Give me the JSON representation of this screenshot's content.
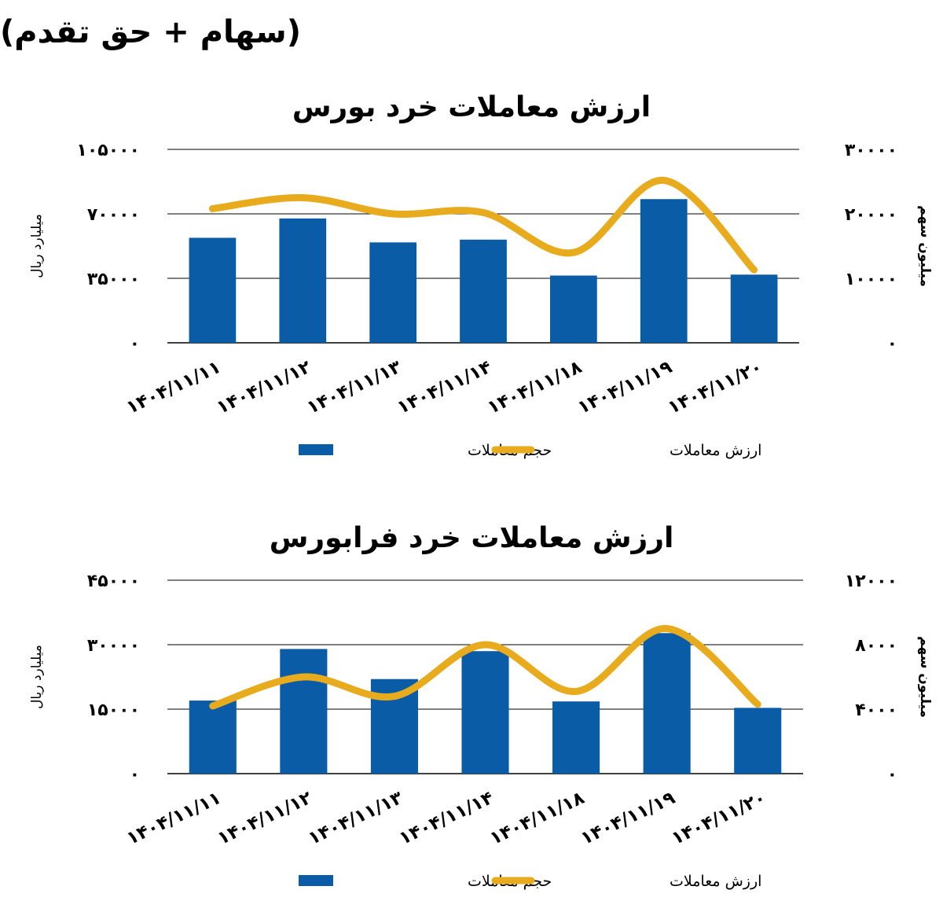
{
  "header": {
    "title": "(سهام + حق تقدم)"
  },
  "colors": {
    "bar": "#0b5ca7",
    "line": "#e8ab1e",
    "grid": "#000000"
  },
  "chart_data": [
    {
      "type": "bar",
      "title": "ارزش معاملات خرد بورس",
      "categories": [
        "1404/11/11",
        "1404/11/12",
        "1404/11/13",
        "1404/11/14",
        "1404/11/18",
        "1404/11/19",
        "1404/11/20"
      ],
      "category_labels": [
        "۱۴۰۴/۱۱/۱۱",
        "۱۴۰۴/۱۱/۱۲",
        "۱۴۰۴/۱۱/۱۳",
        "۱۴۰۴/۱۱/۱۴",
        "۱۴۰۴/۱۱/۱۸",
        "۱۴۰۴/۱۱/۱۹",
        "۱۴۰۴/۱۱/۲۰"
      ],
      "ylabel_left": "میلیارد ریال",
      "ylabel_right": "میلیون سهم",
      "ylim_left": [
        0,
        105000
      ],
      "ylim_right": [
        0,
        30000
      ],
      "left_ticks": [
        "۰",
        "۳۵۰۰۰",
        "۷۰۰۰۰",
        "۱۰۵۰۰۰"
      ],
      "right_ticks": [
        "۰",
        "۱۰۰۰۰",
        "۲۰۰۰۰",
        "۳۰۰۰۰"
      ],
      "grid": true,
      "legend_position": "bottom",
      "series": [
        {
          "name": "حجم معاملات",
          "type": "bar",
          "axis": "left",
          "values": [
            57000,
            67500,
            54500,
            56000,
            36500,
            78000,
            37000
          ]
        },
        {
          "name": "ارزش معاملات",
          "type": "line",
          "axis": "right",
          "values": [
            20800,
            22500,
            20000,
            20200,
            14000,
            25200,
            11300
          ]
        }
      ]
    },
    {
      "type": "bar",
      "title": "ارزش معاملات خرد فرابورس",
      "categories": [
        "1404/11/11",
        "1404/11/12",
        "1404/11/13",
        "1404/11/14",
        "1404/11/18",
        "1404/11/19",
        "1404/11/20"
      ],
      "category_labels": [
        "۱۴۰۴/۱۱/۱۱",
        "۱۴۰۴/۱۱/۱۲",
        "۱۴۰۴/۱۱/۱۳",
        "۱۴۰۴/۱۱/۱۴",
        "۱۴۰۴/۱۱/۱۸",
        "۱۴۰۴/۱۱/۱۹",
        "۱۴۰۴/۱۱/۲۰"
      ],
      "ylabel_left": "میلیارد ریال",
      "ylabel_right": "میلیون سهم",
      "ylim_left": [
        0,
        45000
      ],
      "ylim_right": [
        0,
        12000
      ],
      "left_ticks": [
        "۰",
        "۱۵۰۰۰",
        "۳۰۰۰۰",
        "۴۵۰۰۰"
      ],
      "right_ticks": [
        "۰",
        "۴۰۰۰",
        "۸۰۰۰",
        "۱۲۰۰۰"
      ],
      "grid": true,
      "legend_position": "bottom",
      "series": [
        {
          "name": "حجم معاملات",
          "type": "bar",
          "axis": "left",
          "values": [
            17000,
            29000,
            22000,
            28500,
            16800,
            32700,
            15300
          ]
        },
        {
          "name": "ارزش معاملات",
          "type": "line",
          "axis": "right",
          "values": [
            4200,
            6000,
            4800,
            8000,
            5100,
            9000,
            4300
          ]
        }
      ]
    }
  ]
}
